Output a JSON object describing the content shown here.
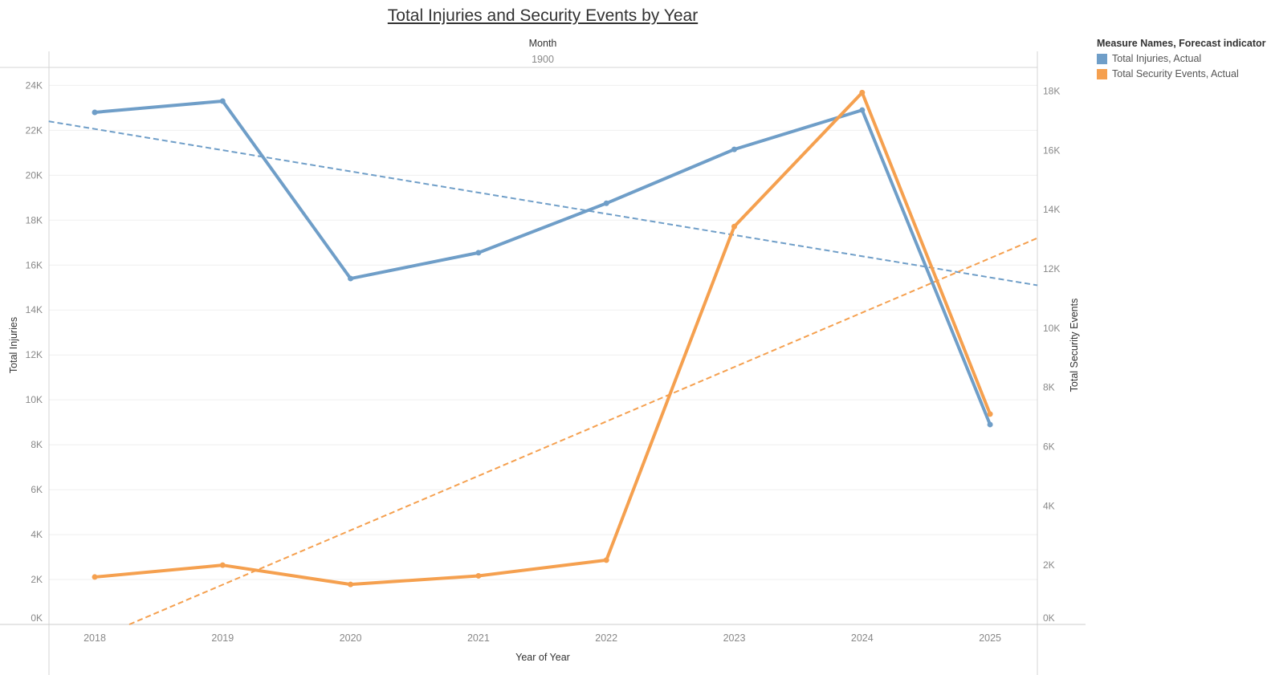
{
  "chart_data": {
    "type": "line",
    "title": "Total Injuries and Security Events by Year",
    "top_axis": {
      "title": "Month",
      "value": "1900"
    },
    "xlabel": "Year of Year",
    "ylabel_left": "Total Injuries",
    "ylabel_right": "Total Security Events",
    "categories": [
      "2018",
      "2019",
      "2020",
      "2021",
      "2022",
      "2023",
      "2024",
      "2025"
    ],
    "y_left": {
      "min": 0,
      "max": 24800,
      "ticks": [
        0,
        2000,
        4000,
        6000,
        8000,
        10000,
        12000,
        14000,
        16000,
        18000,
        20000,
        22000,
        24000
      ],
      "tick_labels": [
        "0K",
        "2K",
        "4K",
        "6K",
        "8K",
        "10K",
        "12K",
        "14K",
        "16K",
        "18K",
        "20K",
        "22K",
        "24K"
      ]
    },
    "y_right": {
      "min": 0,
      "max": 18800,
      "ticks": [
        0,
        2000,
        4000,
        6000,
        8000,
        10000,
        12000,
        14000,
        16000,
        18000
      ],
      "tick_labels": [
        "0K",
        "2K",
        "4K",
        "6K",
        "8K",
        "10K",
        "12K",
        "14K",
        "16K",
        "18K"
      ]
    },
    "series": [
      {
        "name": "Total Injuries, Actual",
        "axis": "left",
        "color": "#6f9ec8",
        "values": [
          22800,
          23300,
          15400,
          16550,
          18750,
          21150,
          22900,
          8900
        ]
      },
      {
        "name": "Total Security Events, Actual",
        "axis": "right",
        "color": "#f5a04f",
        "values": [
          1600,
          2000,
          1350,
          1640,
          2170,
          13430,
          17950,
          7100
        ]
      }
    ],
    "trend_lines": [
      {
        "series": "Total Injuries",
        "axis": "left",
        "style": "dashed",
        "color": "#6f9ec8",
        "x_range": [
          2017.64,
          2025.37
        ],
        "y_range": [
          22400,
          15100
        ]
      },
      {
        "series": "Total Security Events",
        "axis": "right",
        "style": "dashed",
        "color": "#f5a04f",
        "x_range": [
          2018.27,
          2025.37
        ],
        "y_range": [
          0,
          13040
        ]
      }
    ],
    "legend": {
      "title": "Measure Names, Forecast indicator",
      "position": "right",
      "items": [
        {
          "label": "Total Injuries, Actual",
          "color": "#6f9ec8"
        },
        {
          "label": "Total Security Events, Actual",
          "color": "#f5a04f"
        }
      ]
    },
    "grid": "horizontal"
  }
}
